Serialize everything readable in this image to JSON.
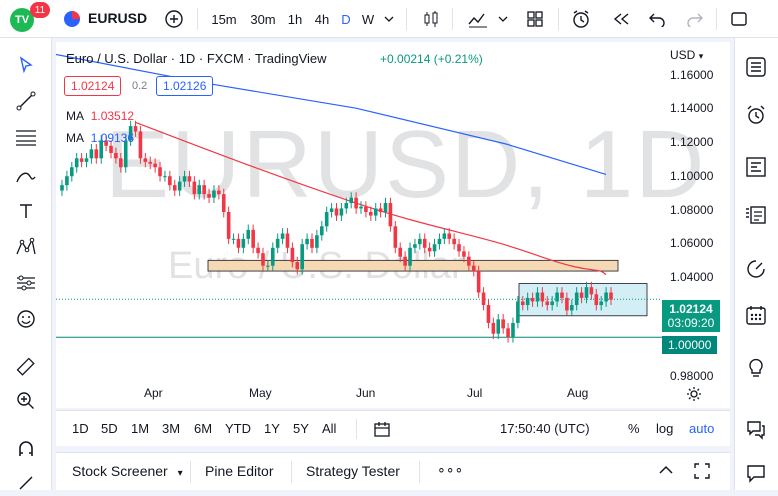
{
  "topbar": {
    "logo_text": "TV",
    "badge": "11",
    "symbol": "EURUSD",
    "intervals": [
      "15m",
      "30m",
      "1h",
      "4h",
      "D",
      "W"
    ],
    "active_interval": "D"
  },
  "legend": {
    "title": "Euro / U.S. Dollar · 1D · FXCM · TradingView",
    "change": "+0.00214 (+0.21%)",
    "bid": "1.02124",
    "spread": "0.2",
    "ask": "1.02126",
    "ma1_label": "MA",
    "ma1_value": "1.03512",
    "ma2_label": "MA",
    "ma2_value": "1.09136"
  },
  "watermark": {
    "main": "EURUSD, 1D",
    "sub": "Euro / U.S. Dollar"
  },
  "price_axis": {
    "currency": "USD",
    "labels": [
      "1.16000",
      "1.14000",
      "1.12000",
      "1.10000",
      "1.08000",
      "1.06000",
      "1.04000",
      "1.00000",
      "0.98000"
    ],
    "current_price": "1.02124",
    "countdown": "03:09:20",
    "level_tag": "1.00000"
  },
  "time_axis": {
    "labels": [
      "Apr",
      "May",
      "Jun",
      "Jul",
      "Aug"
    ]
  },
  "bottom_bar": {
    "ranges": [
      "1D",
      "5D",
      "1M",
      "3M",
      "6M",
      "YTD",
      "1Y",
      "5Y",
      "All"
    ],
    "clock": "17:50:40 (UTC)",
    "percent": "%",
    "log": "log",
    "auto": "auto"
  },
  "panel_bar": {
    "tabs": [
      "Stock Screener",
      "Pine Editor",
      "Strategy Tester"
    ],
    "more": "∘∘∘"
  },
  "colors": {
    "up": "#089981",
    "down": "#f23645",
    "ma_red": "#f23645",
    "ma_blue": "#2962ff",
    "support": "#00897b"
  },
  "chart_data": {
    "type": "candlestick",
    "symbol": "EURUSD",
    "timeframe": "1D",
    "ylim": [
      0.975,
      1.165
    ],
    "yticks": [
      0.98,
      1.0,
      1.04,
      1.06,
      1.08,
      1.1,
      1.12,
      1.14,
      1.16
    ],
    "xticks": [
      "Apr",
      "May",
      "Jun",
      "Jul",
      "Aug"
    ],
    "close_series": [
      1.085,
      1.09,
      1.095,
      1.1,
      1.098,
      1.1,
      1.105,
      1.1,
      1.11,
      1.107,
      1.103,
      1.1,
      1.095,
      1.11,
      1.118,
      1.115,
      1.1,
      1.098,
      1.097,
      1.095,
      1.09,
      1.09,
      1.085,
      1.082,
      1.087,
      1.09,
      1.087,
      1.08,
      1.085,
      1.08,
      1.078,
      1.082,
      1.08,
      1.07,
      1.055,
      1.055,
      1.05,
      1.055,
      1.06,
      1.05,
      1.047,
      1.04,
      1.04,
      1.05,
      1.055,
      1.058,
      1.05,
      1.042,
      1.038,
      1.052,
      1.055,
      1.05,
      1.057,
      1.062,
      1.07,
      1.072,
      1.068,
      1.072,
      1.075,
      1.078,
      1.072,
      1.073,
      1.07,
      1.068,
      1.072,
      1.07,
      1.075,
      1.062,
      1.05,
      1.045,
      1.04,
      1.05,
      1.052,
      1.055,
      1.05,
      1.048,
      1.052,
      1.055,
      1.058,
      1.055,
      1.052,
      1.048,
      1.045,
      1.04,
      1.037,
      1.025,
      1.018,
      1.008,
      1.002,
      1.01,
      1.005,
      1.0,
      1.008,
      1.02,
      1.018,
      1.022,
      1.02,
      1.025,
      1.02,
      1.018,
      1.02,
      1.025,
      1.022,
      1.015,
      1.018,
      1.025,
      1.022,
      1.028,
      1.024,
      1.018,
      1.02,
      1.025,
      1.021
    ],
    "ma_red": {
      "name": "MA",
      "last": 1.03512
    },
    "ma_blue": {
      "name": "MA",
      "last": 1.09136
    },
    "zones": [
      {
        "from": 1.037,
        "to": 1.043,
        "color": "#f5d9b5"
      },
      {
        "from": 1.012,
        "to": 1.03,
        "color": "#d4eef6"
      }
    ],
    "support_level": 1.0,
    "current_price": 1.02124
  }
}
